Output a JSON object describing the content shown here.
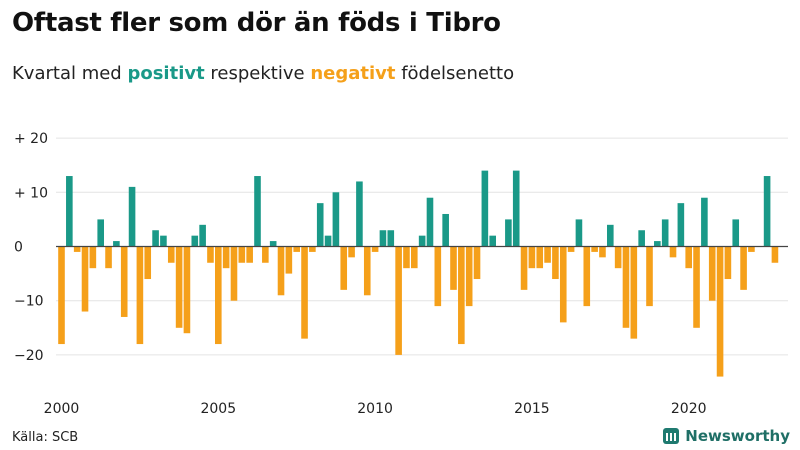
{
  "header": {
    "title": "Oftast fler som dör än föds i Tibro",
    "subtitle_pre": "Kvartal med ",
    "subtitle_pos": "positivt",
    "subtitle_mid": " respektive ",
    "subtitle_neg": "negativt",
    "subtitle_post": " födelsenetto"
  },
  "footer": {
    "source": "Källa: SCB",
    "brand": "Newsworthy"
  },
  "colors": {
    "positive": "#1a9988",
    "negative": "#f5a01a",
    "grid": "#e4e4e4",
    "zero": "#444444"
  },
  "chart_data": {
    "type": "bar",
    "title": "Oftast fler som dör än föds i Tibro",
    "subtitle": "Kvartal med positivt respektive negativt födelsenetto",
    "xlabel": "",
    "ylabel": "",
    "x_start": 2000,
    "periods_per_year": 4,
    "x_ticks": [
      "2000",
      "2005",
      "2010",
      "2015",
      "2020"
    ],
    "y_ticks": [
      {
        "value": 20,
        "label": "+ 20"
      },
      {
        "value": 10,
        "label": "+ 10"
      },
      {
        "value": 0,
        "label": "0"
      },
      {
        "value": -10,
        "label": "−10"
      },
      {
        "value": -20,
        "label": "−20"
      }
    ],
    "ylim": [
      -26,
      21
    ],
    "grid": true,
    "values": [
      -18,
      13,
      -1,
      -12,
      -4,
      5,
      -4,
      1,
      -13,
      11,
      -18,
      -6,
      3,
      2,
      -3,
      -15,
      -16,
      2,
      4,
      -3,
      -18,
      -4,
      -10,
      -3,
      -3,
      13,
      -3,
      1,
      -9,
      -5,
      -1,
      -17,
      -1,
      8,
      2,
      10,
      -8,
      -2,
      12,
      -9,
      -1,
      3,
      3,
      -20,
      -4,
      -4,
      2,
      9,
      -11,
      6,
      -8,
      -18,
      -11,
      -6,
      14,
      2,
      0,
      5,
      14,
      -8,
      -4,
      -4,
      -3,
      -6,
      -14,
      -1,
      5,
      -11,
      -1,
      -2,
      4,
      -4,
      -15,
      -17,
      3,
      -11,
      1,
      5,
      -2,
      8,
      -4,
      -15,
      9,
      -10,
      -24,
      -6,
      5,
      -8,
      -1,
      0,
      13,
      -3
    ]
  }
}
